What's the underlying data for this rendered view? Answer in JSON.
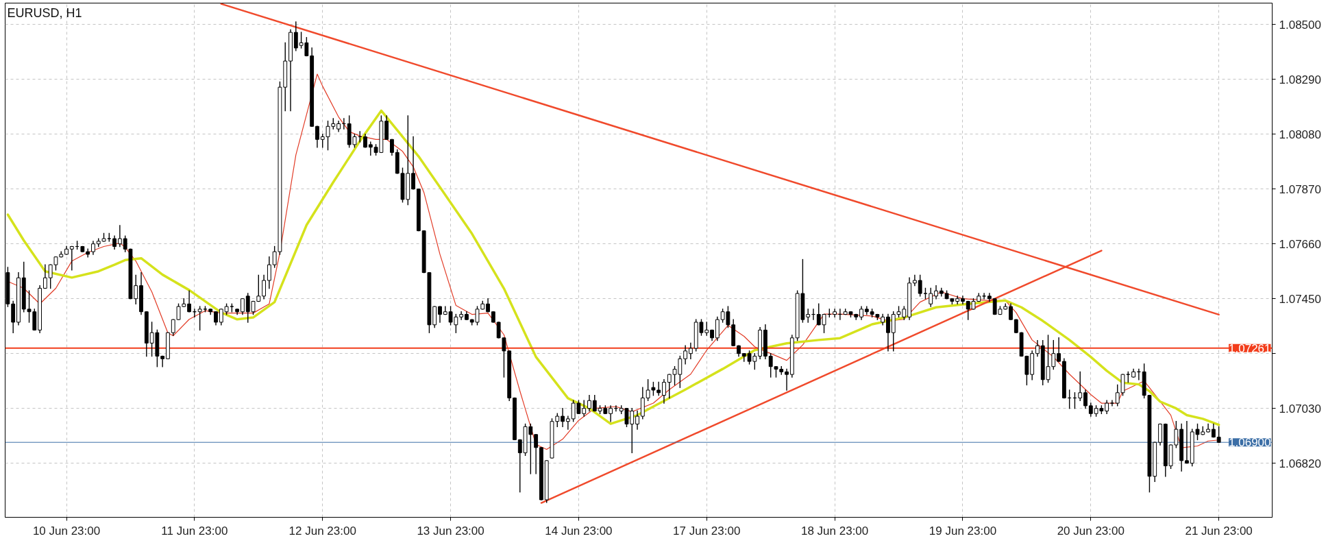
{
  "chart_data": {
    "type": "candlestick",
    "title": "EURUSD, H1",
    "color": "#000000",
    "categories": [
      null,
      null,
      null,
      null,
      null,
      null,
      null,
      null,
      null,
      null,
      null,
      "10 Jun 23:00",
      null,
      null,
      null,
      null,
      null,
      null,
      null,
      null,
      null,
      null,
      null,
      null,
      null,
      null,
      null,
      null,
      null,
      null,
      null,
      null,
      null,
      null,
      null,
      "11 Jun 23:00",
      null,
      null,
      null,
      null,
      null,
      null,
      null,
      null,
      null,
      null,
      null,
      null,
      null,
      null,
      null,
      null,
      null,
      null,
      null,
      null,
      null,
      null,
      null,
      "12 Jun 23:00",
      null,
      null,
      null,
      null,
      null,
      null,
      null,
      null,
      null,
      null,
      null,
      null,
      null,
      null,
      null,
      null,
      null,
      null,
      null,
      null,
      null,
      null,
      null,
      "13 Jun 23:00",
      null,
      null,
      null,
      null,
      null,
      null,
      null,
      null,
      null,
      null,
      null,
      null,
      null,
      null,
      null,
      null,
      null,
      null,
      null,
      null,
      null,
      null,
      null,
      "14 Jun 23:00",
      null,
      null,
      null,
      null,
      null,
      null,
      null,
      null,
      null,
      null,
      null,
      null,
      null,
      null,
      null,
      null,
      null,
      null,
      null,
      null,
      null,
      null,
      null,
      "17 Jun 23:00",
      null,
      null,
      null,
      null,
      null,
      null,
      null,
      null,
      null,
      null,
      null,
      null,
      null,
      null,
      null,
      null,
      null,
      null,
      null,
      null,
      null,
      null,
      null,
      "18 Jun 23:00",
      null,
      null,
      null,
      null,
      null,
      null,
      null,
      null,
      null,
      null,
      null,
      null,
      null,
      null,
      null,
      null,
      null,
      null,
      null,
      null,
      null,
      null,
      null,
      "19 Jun 23:00",
      null,
      null,
      null,
      null,
      null,
      null,
      null,
      null,
      null,
      null,
      null,
      null,
      null,
      null,
      null,
      null,
      null,
      null,
      null,
      null,
      null,
      null,
      null,
      "20 Jun 23:00",
      null,
      null,
      null,
      null,
      null,
      null,
      null,
      null,
      null,
      null,
      null,
      null,
      null,
      null,
      null,
      null,
      null,
      null,
      null,
      null,
      null,
      null,
      null,
      "21 Jun 23:00"
    ],
    "ohlc": [
      [
        1.0755,
        1.0757,
        1.0742,
        1.0743
      ],
      [
        1.0743,
        1.0744,
        1.0732,
        1.0736
      ],
      [
        1.0736,
        1.0755,
        1.0735,
        1.0753
      ],
      [
        1.0753,
        1.0759,
        1.074,
        1.0741
      ],
      [
        1.0741,
        1.0748,
        1.0736,
        1.074
      ],
      [
        1.074,
        1.0741,
        1.0733,
        1.0733
      ],
      [
        1.0733,
        1.075,
        1.0732,
        1.0749
      ],
      [
        1.0749,
        1.0758,
        1.0749,
        1.0753
      ],
      [
        1.0753,
        1.0758,
        1.0749,
        1.0758
      ],
      [
        1.0758,
        1.0761,
        1.0756,
        1.0761
      ],
      [
        1.0761,
        1.0763,
        1.0761,
        1.0762
      ],
      [
        1.0762,
        1.0765,
        1.0762,
        1.0764
      ],
      [
        1.0764,
        1.0765,
        1.0756,
        1.0765
      ],
      [
        1.0765,
        1.0767,
        1.0764,
        1.0765
      ],
      [
        1.0765,
        1.0765,
        1.0763,
        1.0763
      ],
      [
        1.0763,
        1.0764,
        1.0761,
        1.0762
      ],
      [
        1.0763,
        1.0767,
        1.0762,
        1.0766
      ],
      [
        1.0766,
        1.0768,
        1.0765,
        1.0767
      ],
      [
        1.0767,
        1.077,
        1.0767,
        1.0768
      ],
      [
        1.0768,
        1.077,
        1.0767,
        1.0768
      ],
      [
        1.0768,
        1.0769,
        1.0764,
        1.0765
      ],
      [
        1.0766,
        1.0773,
        1.0765,
        1.0768
      ],
      [
        1.0768,
        1.0769,
        1.0763,
        1.0764
      ],
      [
        1.0764,
        1.0764,
        1.0745,
        1.0745
      ],
      [
        1.0745,
        1.0754,
        1.0743,
        1.075
      ],
      [
        1.075,
        1.0755,
        1.0739,
        1.074
      ],
      [
        1.074,
        1.074,
        1.0723,
        1.0728
      ],
      [
        1.0728,
        1.0736,
        1.0723,
        1.0732
      ],
      [
        1.0732,
        1.0733,
        1.0719,
        1.0723
      ],
      [
        1.0723,
        1.0723,
        1.0719,
        1.0722
      ],
      [
        1.0722,
        1.0732,
        1.0722,
        1.0732
      ],
      [
        1.0732,
        1.0737,
        1.0731,
        1.0737
      ],
      [
        1.0737,
        1.0743,
        1.0737,
        1.0742
      ],
      [
        1.0742,
        1.0745,
        1.0742,
        1.0743
      ],
      [
        1.0743,
        1.0748,
        1.074,
        1.074
      ],
      [
        1.074,
        1.0741,
        1.0738,
        1.074
      ],
      [
        1.074,
        1.0742,
        1.0733,
        1.0741
      ],
      [
        1.0741,
        1.0742,
        1.074,
        1.0741
      ],
      [
        1.0741,
        1.0741,
        1.0739,
        1.074
      ],
      [
        1.074,
        1.074,
        1.0735,
        1.0736
      ],
      [
        1.0736,
        1.0741,
        1.0735,
        1.0741
      ],
      [
        1.074,
        1.0743,
        1.0739,
        1.0742
      ],
      [
        1.0742,
        1.0743,
        1.074,
        1.0742
      ],
      [
        1.0741,
        1.0741,
        1.0739,
        1.074
      ],
      [
        1.074,
        1.0745,
        1.0739,
        1.0745
      ],
      [
        1.0746,
        1.0747,
        1.0736,
        1.074
      ],
      [
        1.074,
        1.0744,
        1.0739,
        1.0744
      ],
      [
        1.0744,
        1.0754,
        1.0744,
        1.0746
      ],
      [
        1.0746,
        1.0754,
        1.0745,
        1.0752
      ],
      [
        1.0752,
        1.0761,
        1.0749,
        1.0758
      ],
      [
        1.0758,
        1.0765,
        1.0757,
        1.0763
      ],
      [
        1.0763,
        1.0828,
        1.0762,
        1.0826
      ],
      [
        1.0826,
        1.0843,
        1.0817,
        1.0836
      ],
      [
        1.0836,
        1.0848,
        1.0817,
        1.0847
      ],
      [
        1.0847,
        1.0851,
        1.084,
        1.0841
      ],
      [
        1.0842,
        1.0847,
        1.0841,
        1.0843
      ],
      [
        1.0843,
        1.0845,
        1.0838,
        1.0838
      ],
      [
        1.0838,
        1.0841,
        1.0811,
        1.0811
      ],
      [
        1.0811,
        1.0811,
        1.0803,
        1.0806
      ],
      [
        1.0806,
        1.0808,
        1.0803,
        1.0807
      ],
      [
        1.0807,
        1.0813,
        1.0802,
        1.0811
      ],
      [
        1.0811,
        1.0814,
        1.081,
        1.0812
      ],
      [
        1.081,
        1.0813,
        1.0809,
        1.0812
      ],
      [
        1.0812,
        1.0814,
        1.081,
        1.0812
      ],
      [
        1.0812,
        1.0815,
        1.0803,
        1.0804
      ],
      [
        1.0804,
        1.0808,
        1.0803,
        1.0807
      ],
      [
        1.0807,
        1.0809,
        1.0805,
        1.0807
      ],
      [
        1.0807,
        1.0808,
        1.0803,
        1.0803
      ],
      [
        1.0804,
        1.0805,
        1.08,
        1.0803
      ],
      [
        1.0803,
        1.0804,
        1.08,
        1.0801
      ],
      [
        1.0801,
        1.0815,
        1.0801,
        1.0813
      ],
      [
        1.0813,
        1.0815,
        1.0806,
        1.0806
      ],
      [
        1.0806,
        1.0806,
        1.08,
        1.0801
      ],
      [
        1.0801,
        1.0802,
        1.0793,
        1.0793
      ],
      [
        1.0793,
        1.0795,
        1.0782,
        1.0783
      ],
      [
        1.0783,
        1.0815,
        1.0781,
        1.0793
      ],
      [
        1.0793,
        1.0807,
        1.0787,
        1.0787
      ],
      [
        1.0787,
        1.0787,
        1.0771,
        1.0771
      ],
      [
        1.0771,
        1.0771,
        1.0755,
        1.0755
      ],
      [
        1.0755,
        1.0755,
        1.0732,
        1.0735
      ],
      [
        1.0735,
        1.0742,
        1.0734,
        1.0742
      ],
      [
        1.0742,
        1.0742,
        1.0736,
        1.0739
      ],
      [
        1.0739,
        1.0742,
        1.0739,
        1.074
      ],
      [
        1.074,
        1.0742,
        1.0735,
        1.0736
      ],
      [
        1.0735,
        1.0739,
        1.0732,
        1.0738
      ],
      [
        1.0738,
        1.074,
        1.0737,
        1.0739
      ],
      [
        1.0739,
        1.074,
        1.0737,
        1.0737
      ],
      [
        1.0737,
        1.0737,
        1.0735,
        1.0736
      ],
      [
        1.0736,
        1.0742,
        1.0735,
        1.0741
      ],
      [
        1.0741,
        1.0744,
        1.0741,
        1.0743
      ],
      [
        1.0743,
        1.0745,
        1.074,
        1.074
      ],
      [
        1.074,
        1.074,
        1.0736,
        1.0736
      ],
      [
        1.0736,
        1.0736,
        1.073,
        1.073
      ],
      [
        1.073,
        1.073,
        1.0715,
        1.0725
      ],
      [
        1.0725,
        1.0725,
        1.0706,
        1.0707
      ],
      [
        1.0707,
        1.0707,
        1.0691,
        1.0691
      ],
      [
        1.0691,
        1.0691,
        1.0671,
        1.0686
      ],
      [
        1.0686,
        1.0697,
        1.0685,
        1.0696
      ],
      [
        1.0696,
        1.0697,
        1.0678,
        1.0693
      ],
      [
        1.0693,
        1.0693,
        1.0678,
        1.0688
      ],
      [
        1.0688,
        1.0688,
        1.0668,
        1.0668
      ],
      [
        1.0668,
        1.0683,
        1.0667,
        1.0683
      ],
      [
        1.0684,
        1.0699,
        1.0684,
        1.0698
      ],
      [
        1.0698,
        1.0701,
        1.0696,
        1.07
      ],
      [
        1.07,
        1.0703,
        1.0696,
        1.0698
      ],
      [
        1.0698,
        1.07,
        1.0695,
        1.0699
      ],
      [
        1.0699,
        1.0706,
        1.0698,
        1.0705
      ],
      [
        1.0705,
        1.0706,
        1.0701,
        1.0701
      ],
      [
        1.0701,
        1.0706,
        1.07,
        1.0703
      ],
      [
        1.0703,
        1.0708,
        1.0702,
        1.0706
      ],
      [
        1.0706,
        1.0708,
        1.0702,
        1.0702
      ],
      [
        1.0702,
        1.0704,
        1.0701,
        1.0703
      ],
      [
        1.0703,
        1.0704,
        1.0701,
        1.0701
      ],
      [
        1.0701,
        1.0704,
        1.0698,
        1.0703
      ],
      [
        1.0703,
        1.0704,
        1.0702,
        1.0703
      ],
      [
        1.0702,
        1.0704,
        1.0701,
        1.0703
      ],
      [
        1.0703,
        1.0703,
        1.0696,
        1.0697
      ],
      [
        1.0697,
        1.0703,
        1.0686,
        1.0702
      ],
      [
        1.0697,
        1.0702,
        1.0695,
        1.07
      ],
      [
        1.07,
        1.0711,
        1.0699,
        1.0707
      ],
      [
        1.0707,
        1.0714,
        1.0706,
        1.071
      ],
      [
        1.0711,
        1.0713,
        1.0708,
        1.071
      ],
      [
        1.071,
        1.0713,
        1.0708,
        1.0709
      ],
      [
        1.0708,
        1.0714,
        1.0705,
        1.0713
      ],
      [
        1.0713,
        1.0716,
        1.0707,
        1.0716
      ],
      [
        1.0716,
        1.0719,
        1.0712,
        1.0718
      ],
      [
        1.0716,
        1.0723,
        1.0711,
        1.0722
      ],
      [
        1.0722,
        1.0727,
        1.072,
        1.0725
      ],
      [
        1.0724,
        1.0728,
        1.0722,
        1.0726
      ],
      [
        1.0726,
        1.0737,
        1.0725,
        1.0736
      ],
      [
        1.0736,
        1.0737,
        1.0731,
        1.0732
      ],
      [
        1.0732,
        1.0736,
        1.0731,
        1.0733
      ],
      [
        1.0733,
        1.0733,
        1.0729,
        1.073
      ],
      [
        1.073,
        1.0738,
        1.0729,
        1.0737
      ],
      [
        1.0737,
        1.0741,
        1.0736,
        1.074
      ],
      [
        1.074,
        1.0742,
        1.0734,
        1.0735
      ],
      [
        1.0735,
        1.0737,
        1.0727,
        1.0727
      ],
      [
        1.0727,
        1.0727,
        1.0723,
        1.0724
      ],
      [
        1.0724,
        1.0724,
        1.0721,
        1.0723
      ],
      [
        1.0724,
        1.0725,
        1.072,
        1.0721
      ],
      [
        1.0721,
        1.0724,
        1.0718,
        1.0723
      ],
      [
        1.0723,
        1.0734,
        1.0722,
        1.0733
      ],
      [
        1.0733,
        1.0735,
        1.0722,
        1.0723
      ],
      [
        1.0723,
        1.0724,
        1.0715,
        1.0719
      ],
      [
        1.0719,
        1.0719,
        1.0715,
        1.0718
      ],
      [
        1.0718,
        1.0719,
        1.0716,
        1.0717
      ],
      [
        1.0717,
        1.0718,
        1.071,
        1.0716
      ],
      [
        1.0716,
        1.0731,
        1.0715,
        1.073
      ],
      [
        1.073,
        1.0748,
        1.0729,
        1.0747
      ],
      [
        1.0747,
        1.076,
        1.0736,
        1.0737
      ],
      [
        1.0738,
        1.0741,
        1.0736,
        1.0739
      ],
      [
        1.0739,
        1.0741,
        1.0737,
        1.0739
      ],
      [
        1.0739,
        1.0743,
        1.0735,
        1.0735
      ],
      [
        1.0735,
        1.0739,
        1.0732,
        1.0739
      ],
      [
        1.0739,
        1.0741,
        1.0738,
        1.0739
      ],
      [
        1.0739,
        1.0741,
        1.0738,
        1.074
      ],
      [
        1.0739,
        1.0741,
        1.0737,
        1.0739
      ],
      [
        1.0739,
        1.0741,
        1.0739,
        1.074
      ],
      [
        1.074,
        1.074,
        1.0738,
        1.0739
      ],
      [
        1.0739,
        1.0739,
        1.0737,
        1.0738
      ],
      [
        1.0738,
        1.0742,
        1.0737,
        1.0741
      ],
      [
        1.0741,
        1.0742,
        1.0739,
        1.074
      ],
      [
        1.074,
        1.0741,
        1.0738,
        1.0739
      ],
      [
        1.0739,
        1.0739,
        1.0737,
        1.0738
      ],
      [
        1.0736,
        1.0739,
        1.0735,
        1.0738
      ],
      [
        1.0738,
        1.0739,
        1.0725,
        1.0732
      ],
      [
        1.0732,
        1.074,
        1.0725,
        1.0739
      ],
      [
        1.0739,
        1.0742,
        1.0738,
        1.074
      ],
      [
        1.0738,
        1.0742,
        1.0737,
        1.0741
      ],
      [
        1.0738,
        1.0753,
        1.0737,
        1.0751
      ],
      [
        1.0751,
        1.0754,
        1.075,
        1.0752
      ],
      [
        1.0752,
        1.0754,
        1.0746,
        1.0747
      ],
      [
        1.0747,
        1.0749,
        1.0745,
        1.0747
      ],
      [
        1.0743,
        1.0749,
        1.0742,
        1.0747
      ],
      [
        1.0746,
        1.075,
        1.0745,
        1.0748
      ],
      [
        1.0748,
        1.0749,
        1.0746,
        1.0747
      ],
      [
        1.0747,
        1.0748,
        1.0745,
        1.0745
      ],
      [
        1.0745,
        1.0745,
        1.0743,
        1.0744
      ],
      [
        1.0744,
        1.0746,
        1.0743,
        1.0745
      ],
      [
        1.0745,
        1.0746,
        1.0743,
        1.0744
      ],
      [
        1.0744,
        1.0744,
        1.0737,
        1.0741
      ],
      [
        1.0741,
        1.0745,
        1.0741,
        1.0744
      ],
      [
        1.0744,
        1.0747,
        1.0744,
        1.0746
      ],
      [
        1.0746,
        1.0747,
        1.0745,
        1.0746
      ],
      [
        1.0746,
        1.0747,
        1.0744,
        1.0745
      ],
      [
        1.0745,
        1.0745,
        1.0739,
        1.0739
      ],
      [
        1.0739,
        1.0742,
        1.0739,
        1.0741
      ],
      [
        1.0741,
        1.0743,
        1.0741,
        1.0742
      ],
      [
        1.0742,
        1.0743,
        1.0737,
        1.0737
      ],
      [
        1.0737,
        1.0737,
        1.0732,
        1.0732
      ],
      [
        1.0732,
        1.0732,
        1.0723,
        1.0723
      ],
      [
        1.0723,
        1.0723,
        1.0712,
        1.0716
      ],
      [
        1.0716,
        1.0725,
        1.0714,
        1.0724
      ],
      [
        1.0724,
        1.0729,
        1.0723,
        1.0727
      ],
      [
        1.0727,
        1.0729,
        1.0712,
        1.0714
      ],
      [
        1.0714,
        1.0731,
        1.0713,
        1.0719
      ],
      [
        1.0719,
        1.0729,
        1.0718,
        1.0724
      ],
      [
        1.0724,
        1.073,
        1.0721,
        1.0721
      ],
      [
        1.0721,
        1.0722,
        1.0707,
        1.0707
      ],
      [
        1.0707,
        1.071,
        1.0703,
        1.0707
      ],
      [
        1.0707,
        1.0709,
        1.0703,
        1.0707
      ],
      [
        1.0707,
        1.0717,
        1.0706,
        1.0709
      ],
      [
        1.0709,
        1.071,
        1.0703,
        1.0704
      ],
      [
        1.0704,
        1.0705,
        1.07,
        1.0701
      ],
      [
        1.0701,
        1.0704,
        1.07,
        1.0703
      ],
      [
        1.0703,
        1.0704,
        1.0701,
        1.0702
      ],
      [
        1.0702,
        1.0706,
        1.0701,
        1.0705
      ],
      [
        1.0705,
        1.0706,
        1.0704,
        1.0705
      ],
      [
        1.0705,
        1.0712,
        1.0704,
        1.0709
      ],
      [
        1.0709,
        1.0716,
        1.0708,
        1.0716
      ],
      [
        1.0716,
        1.0717,
        1.0713,
        1.0716
      ],
      [
        1.0715,
        1.0718,
        1.0715,
        1.0717
      ],
      [
        1.0717,
        1.0718,
        1.0714,
        1.0717
      ],
      [
        1.0717,
        1.072,
        1.0707,
        1.0708
      ],
      [
        1.0708,
        1.0708,
        1.0671,
        1.0677
      ],
      [
        1.0677,
        1.069,
        1.0675,
        1.069
      ],
      [
        1.069,
        1.0697,
        1.0689,
        1.0697
      ],
      [
        1.0697,
        1.0697,
        1.0677,
        1.0681
      ],
      [
        1.0681,
        1.0689,
        1.068,
        1.0689
      ],
      [
        1.0689,
        1.0698,
        1.0688,
        1.0695
      ],
      [
        1.0695,
        1.0697,
        1.0679,
        1.0683
      ],
      [
        1.0683,
        1.0698,
        1.0682,
        1.0682
      ],
      [
        1.0682,
        1.0695,
        1.0681,
        1.0694
      ],
      [
        1.0695,
        1.0697,
        1.0691,
        1.0693
      ],
      [
        1.0693,
        1.0696,
        1.0693,
        1.0694
      ],
      [
        1.0694,
        1.0697,
        1.0694,
        1.0695
      ],
      [
        1.0695,
        1.0697,
        1.0692,
        1.0692
      ],
      [
        1.0692,
        1.0696,
        1.069,
        1.069
      ]
    ],
    "series": [
      {
        "type": "line",
        "color": "#e23b26",
        "values": [
          1.07516,
          null,
          null,
          1.0749,
          null,
          null,
          1.0743,
          null,
          null,
          1.0749,
          null,
          null,
          1.07594,
          null,
          null,
          1.07627,
          null,
          null,
          1.0765,
          null,
          null,
          1.07663,
          1.07647,
          null,
          1.07594,
          null,
          null,
          1.07476,
          null,
          null,
          1.07319,
          1.07308,
          null,
          null,
          1.07371,
          null,
          null,
          1.07404,
          null,
          null,
          1.07395,
          null,
          null,
          1.07395,
          null,
          null,
          1.07395,
          null,
          null,
          1.0743,
          null,
          1.07627,
          null,
          null,
          1.08001,
          null,
          null,
          null,
          1.0831,
          1.08264,
          null,
          null,
          1.08146,
          null,
          1.0809,
          null,
          1.08073,
          null,
          null,
          1.0806,
          null,
          1.0806,
          null,
          null,
          1.08014,
          null,
          1.07955,
          null,
          1.07857,
          null,
          null,
          1.0762,
          null,
          null,
          1.07424,
          null,
          null,
          1.0739,
          null,
          null,
          1.07395,
          null,
          null,
          1.07312,
          null,
          null,
          1.07096,
          null,
          null,
          1.06892,
          null,
          1.06873,
          null,
          null,
          1.06912,
          null,
          null,
          1.06984,
          null,
          null,
          1.0703,
          null,
          null,
          null,
          1.07037,
          null,
          null,
          1.07017,
          null,
          null,
          null,
          1.0705,
          null,
          null,
          1.07102,
          null,
          null,
          null,
          1.07161,
          null,
          null,
          1.07253,
          null,
          null,
          null,
          1.07348,
          null,
          null,
          1.07306,
          null,
          1.07266,
          null,
          null,
          1.0724,
          null,
          null,
          1.07214,
          null,
          null,
          1.07273,
          null,
          1.07332,
          null,
          1.07391,
          null,
          null,
          1.07391,
          null,
          null,
          null,
          null,
          null,
          1.07384,
          null,
          null,
          1.07365,
          null,
          null,
          1.07371,
          null,
          null,
          1.07437,
          null,
          null,
          null,
          1.07476,
          null,
          null,
          null,
          1.0745,
          null,
          null,
          null,
          null,
          1.07443,
          null,
          null,
          1.07443,
          null,
          1.07397,
          null,
          null,
          1.07292,
          null,
          null,
          null,
          1.07227,
          null,
          null,
          1.07161,
          null,
          null,
          null,
          1.07083,
          null,
          1.0705,
          null,
          null,
          1.0705,
          1.07096,
          null,
          null,
          null,
          1.07135,
          null,
          1.07083,
          null,
          null,
          1.07004,
          null,
          1.06879,
          null,
          null,
          1.06886,
          null,
          1.06905,
          null,
          1.06909
        ]
      },
      {
        "type": "line",
        "color": "#d5e21c",
        "values": [
          1.07772,
          null,
          null,
          1.07673,
          null,
          null,
          null,
          1.07555,
          null,
          null,
          null,
          null,
          1.07531,
          null,
          null,
          null,
          null,
          1.07555,
          null,
          null,
          1.0758,
          null,
          1.07598,
          null,
          null,
          1.07605,
          null,
          null,
          null,
          1.07542,
          null,
          null,
          null,
          null,
          1.07483,
          null,
          null,
          null,
          null,
          null,
          1.07397,
          null,
          null,
          1.07371,
          null,
          null,
          1.07378,
          null,
          null,
          null,
          1.07437,
          null,
          null,
          null,
          null,
          null,
          1.07732,
          null,
          null,
          null,
          null,
          1.07896,
          null,
          null,
          null,
          null,
          1.08054,
          null,
          null,
          null,
          1.0817,
          null,
          1.0812,
          null,
          null,
          null,
          null,
          1.07995,
          null,
          null,
          null,
          1.07877,
          null,
          null,
          null,
          null,
          null,
          1.07699,
          null,
          null,
          null,
          null,
          null,
          1.07489,
          null,
          null,
          null,
          null,
          null,
          1.07227,
          null,
          null,
          null,
          null,
          null,
          1.07069,
          null,
          null,
          null,
          1.0703,
          null,
          null,
          null,
          1.06971,
          null,
          null,
          null,
          null,
          1.07004,
          null,
          null,
          1.07037,
          null,
          null,
          null,
          null,
          null,
          1.07102,
          null,
          null,
          null,
          null,
          null,
          null,
          1.07181,
          null,
          null,
          null,
          null,
          null,
          1.07253,
          null,
          null,
          null,
          null,
          null,
          1.07279,
          null,
          null,
          null,
          null,
          null,
          1.07292,
          null,
          null,
          null,
          1.07299,
          null,
          null,
          null,
          null,
          null,
          1.07352,
          null,
          null,
          null,
          null,
          null,
          1.07378,
          null,
          null,
          null,
          null,
          null,
          1.07417,
          null,
          null,
          null,
          null,
          null,
          1.0743,
          null,
          null,
          null,
          null,
          null,
          null,
          1.07443,
          null,
          null,
          1.07417,
          null,
          null,
          null,
          1.07365,
          null,
          null,
          null,
          null,
          1.07292,
          null,
          null,
          null,
          1.07227,
          null,
          null,
          1.07174,
          null,
          null,
          1.07128,
          null,
          null,
          1.07122,
          null,
          1.07096,
          null,
          1.07056,
          null,
          null,
          1.0703,
          null,
          1.07004,
          null,
          null,
          1.0699,
          null,
          null,
          1.06967
        ]
      },
      {
        "type": "line",
        "color": "#f04a2c",
        "values": [
          null,
          null,
          null,
          null,
          null,
          null,
          null,
          null,
          null,
          null,
          null,
          null,
          null,
          null,
          null,
          null,
          null,
          null,
          null,
          null,
          null,
          null,
          null,
          null,
          null,
          null,
          null,
          null,
          null,
          null,
          null,
          null,
          null,
          null,
          null,
          null,
          null,
          null,
          null,
          null,
          1.08579,
          null,
          null,
          null,
          null,
          null,
          null,
          null,
          null,
          null,
          null,
          null,
          null,
          null,
          null,
          null,
          null,
          null,
          null,
          null,
          null,
          null,
          null,
          null,
          null,
          null,
          null,
          null,
          null,
          null,
          null,
          null,
          null,
          null,
          null,
          null,
          null,
          null,
          null,
          null,
          null,
          null,
          null,
          null,
          null,
          null,
          null,
          null,
          null,
          null,
          null,
          null,
          null,
          null,
          null,
          null,
          null,
          null,
          null,
          null,
          null,
          null,
          null,
          null,
          null,
          null,
          null,
          null,
          null,
          null,
          null,
          null,
          null,
          null,
          null,
          null,
          null,
          null,
          null,
          null,
          null,
          null,
          null,
          null,
          null,
          null,
          null,
          null,
          null,
          null,
          null,
          null,
          null,
          null,
          null,
          null,
          null,
          null,
          null,
          null,
          null,
          null,
          null,
          null,
          null,
          null,
          null,
          null,
          null,
          null,
          null,
          null,
          null,
          null,
          null,
          null,
          null,
          null,
          null,
          null,
          null,
          null,
          null,
          null,
          null,
          null,
          null,
          null,
          null,
          null,
          null,
          null,
          null,
          null,
          null,
          null,
          null,
          null,
          null,
          null,
          null,
          null,
          null,
          null,
          null,
          null,
          null,
          null,
          null,
          null,
          null,
          null,
          null,
          null,
          null,
          null,
          null,
          null,
          null,
          null,
          null,
          null,
          null,
          null,
          null,
          null,
          null,
          null,
          null,
          null,
          null,
          null,
          null,
          null,
          null,
          null,
          null,
          null,
          null,
          null,
          null,
          null,
          null,
          null,
          null,
          null,
          null,
          1.07389
        ]
      },
      {
        "type": "line",
        "color": "#f04a2c",
        "values": [
          null,
          null,
          null,
          null,
          null,
          null,
          null,
          null,
          null,
          null,
          null,
          null,
          null,
          null,
          null,
          null,
          null,
          null,
          null,
          null,
          null,
          null,
          null,
          null,
          null,
          null,
          null,
          null,
          null,
          null,
          null,
          null,
          null,
          null,
          null,
          null,
          null,
          null,
          null,
          null,
          null,
          null,
          null,
          null,
          null,
          null,
          null,
          null,
          null,
          null,
          null,
          null,
          null,
          null,
          null,
          null,
          null,
          null,
          null,
          null,
          null,
          null,
          null,
          null,
          null,
          null,
          null,
          null,
          null,
          null,
          null,
          null,
          null,
          null,
          null,
          null,
          null,
          null,
          null,
          null,
          null,
          null,
          null,
          null,
          null,
          null,
          null,
          null,
          null,
          null,
          null,
          null,
          null,
          null,
          null,
          null,
          null,
          null,
          null,
          null,
          1.06668,
          null,
          null,
          null,
          null,
          null,
          null,
          null,
          null,
          null,
          null,
          null,
          null,
          null,
          null,
          null,
          null,
          null,
          null,
          null,
          null,
          null,
          null,
          null,
          null,
          null,
          null,
          null,
          null,
          null,
          null,
          null,
          null,
          null,
          null,
          null,
          null,
          null,
          null,
          null,
          null,
          null,
          null,
          null,
          null,
          null,
          null,
          null,
          null,
          null,
          null,
          null,
          null,
          null,
          null,
          null,
          null,
          null,
          null,
          null,
          null,
          null,
          null,
          null,
          null,
          null,
          null,
          null,
          null,
          null,
          null,
          null,
          null,
          null,
          null,
          null,
          null,
          null,
          null,
          null,
          null,
          null,
          null,
          null,
          null,
          null,
          null,
          null,
          null,
          null,
          null,
          null,
          null,
          null,
          null,
          null,
          null,
          null,
          null,
          null,
          null,
          null,
          null,
          null,
          null,
          1.07634,
          null,
          null,
          null,
          null,
          null,
          null,
          null,
          null,
          null,
          null,
          null,
          null,
          null,
          null,
          null,
          null,
          null,
          null,
          null,
          null,
          null,
          null
        ]
      }
    ],
    "ylim": [
      1.06613,
      1.08582
    ],
    "yticks": [
      {
        "value": 1.085,
        "label": "1.08500"
      },
      {
        "value": 1.0829,
        "label": "1.08290"
      },
      {
        "value": 1.0808,
        "label": "1.08080"
      },
      {
        "value": 1.0787,
        "label": "1.07870"
      },
      {
        "value": 1.0766,
        "label": "1.07660"
      },
      {
        "value": 1.0745,
        "label": "1.07450"
      },
      {
        "value": 1.0724,
        "label": null
      },
      {
        "value": 1.0703,
        "label": "1.07030"
      },
      {
        "value": 1.0682,
        "label": "1.06820"
      }
    ],
    "grid": true,
    "ref_lines": [
      {
        "axis": "y",
        "value": 1.07261,
        "label": "1.07261",
        "color": "#f23d1b"
      },
      {
        "axis": "y",
        "value": 1.069,
        "label": "1.06900",
        "color": "#3b6ea6"
      }
    ]
  }
}
